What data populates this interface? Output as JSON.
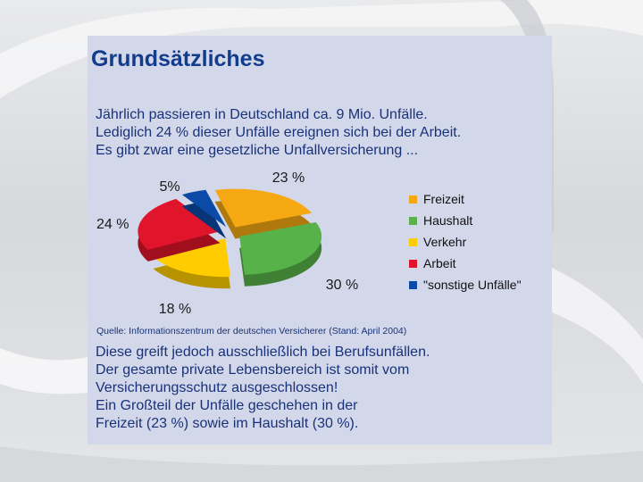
{
  "title": "Grundsätzliches",
  "intro_lines": [
    "Jährlich passieren in Deutschland ca. 9 Mio. Unfälle.",
    "Lediglich 24 % dieser Unfälle ereignen sich bei der Arbeit.",
    "Es gibt zwar eine gesetzliche Unfallversicherung ..."
  ],
  "chart_data": {
    "type": "pie",
    "title": "",
    "legend_position": "right",
    "slices": [
      {
        "name": "Freizeit",
        "value": 23,
        "label": "23 %",
        "color": "#f5a812"
      },
      {
        "name": "Haushalt",
        "value": 30,
        "label": "30 %",
        "color": "#57b24a"
      },
      {
        "name": "Verkehr",
        "value": 18,
        "label": "18 %",
        "color": "#ffcc00"
      },
      {
        "name": "Arbeit",
        "value": 24,
        "label": "24 %",
        "color": "#e0142a"
      },
      {
        "name": "\"sonstige Unfälle\"",
        "value": 5,
        "label": "5%",
        "color": "#0b4aa6"
      }
    ]
  },
  "source": "Quelle: Informationszentrum der deutschen Versicherer (Stand: April 2004)",
  "outro_lines": [
    "Diese greift jedoch ausschließlich bei Berufsunfällen.",
    "Der gesamte private Lebensbereich ist somit vom",
    "Versicherungsschutz ausgeschlossen!",
    "Ein Großteil der Unfälle geschehen in der",
    "Freizeit (23 %) sowie im Haushalt (30 %)."
  ]
}
